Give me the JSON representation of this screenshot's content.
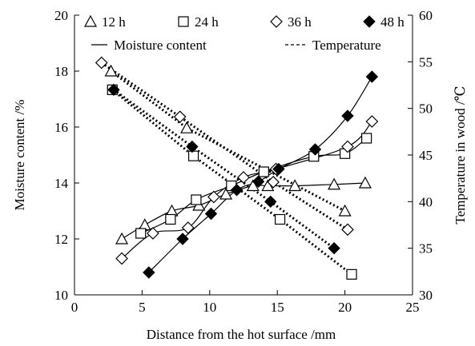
{
  "chart_data": {
    "type": "line",
    "xlabel": "Distance from the hot surface /mm",
    "ylabel_left": "Moisture content /%",
    "ylabel_right": "Temperature in wood /℃",
    "xlim": [
      0,
      25
    ],
    "ylim_left": [
      10,
      20
    ],
    "ylim_right": [
      30,
      60
    ],
    "x_ticks": [
      "0",
      "5",
      "10",
      "15",
      "20",
      "25"
    ],
    "y_left_ticks": [
      "10",
      "12",
      "14",
      "16",
      "18",
      "20"
    ],
    "y_right_ticks": [
      "30",
      "35",
      "40",
      "45",
      "50",
      "55",
      "60"
    ],
    "grid": false,
    "legend": {
      "series": [
        {
          "label": "12 h",
          "marker": "triangle"
        },
        {
          "label": "24 h",
          "marker": "square"
        },
        {
          "label": "36 h",
          "marker": "diamond"
        },
        {
          "label": "48 h",
          "marker": "filled-diamond"
        }
      ],
      "line_styles": [
        {
          "label": "Moisture content",
          "style": "solid"
        },
        {
          "label": "Temperature",
          "style": "dashed"
        }
      ]
    },
    "series": [
      {
        "name": "12 h",
        "marker": "triangle",
        "moisture": {
          "x": [
            3.5,
            5.2,
            7.2,
            9.2,
            11.2,
            13.2,
            14.3,
            16.3,
            19.2,
            21.5
          ],
          "y": [
            12.0,
            12.5,
            13.0,
            13.2,
            13.6,
            13.9,
            13.9,
            13.9,
            13.95,
            14.0
          ]
        },
        "temperature": {
          "x": [
            2.7,
            8.3,
            20.0
          ],
          "y": [
            54.0,
            47.9,
            39.0
          ]
        }
      },
      {
        "name": "24 h",
        "marker": "square",
        "moisture": {
          "x": [
            4.9,
            7.1,
            9.0,
            11.6,
            14.0,
            17.7,
            20.0,
            21.6
          ],
          "y": [
            12.2,
            12.7,
            13.4,
            13.9,
            14.4,
            14.95,
            15.05,
            15.6
          ]
        },
        "temperature": {
          "x": [
            2.8,
            8.8,
            15.2,
            20.5
          ],
          "y": [
            52.0,
            44.9,
            38.1,
            32.2
          ]
        }
      },
      {
        "name": "36 h",
        "marker": "diamond",
        "moisture": {
          "x": [
            3.5,
            5.8,
            8.4,
            10.3,
            12.5,
            14.9,
            20.2,
            22.0
          ],
          "y": [
            11.3,
            12.2,
            12.4,
            13.5,
            14.2,
            14.5,
            15.3,
            16.2
          ]
        },
        "temperature": {
          "x": [
            2.0,
            7.8,
            14.7,
            20.2
          ],
          "y": [
            54.9,
            49.1,
            42.1,
            37.0
          ]
        }
      },
      {
        "name": "48 h",
        "marker": "filled-diamond",
        "moisture": {
          "x": [
            5.5,
            8.0,
            10.1,
            12.0,
            13.6,
            15.1,
            17.8,
            20.2,
            22.0
          ],
          "y": [
            10.8,
            12.0,
            12.9,
            13.75,
            14.05,
            14.5,
            15.2,
            16.4,
            17.8
          ]
        },
        "temperature": {
          "x": [
            2.9,
            8.7,
            14.5,
            19.2
          ],
          "y": [
            52.0,
            45.9,
            40.0,
            35.0
          ]
        }
      }
    ]
  }
}
